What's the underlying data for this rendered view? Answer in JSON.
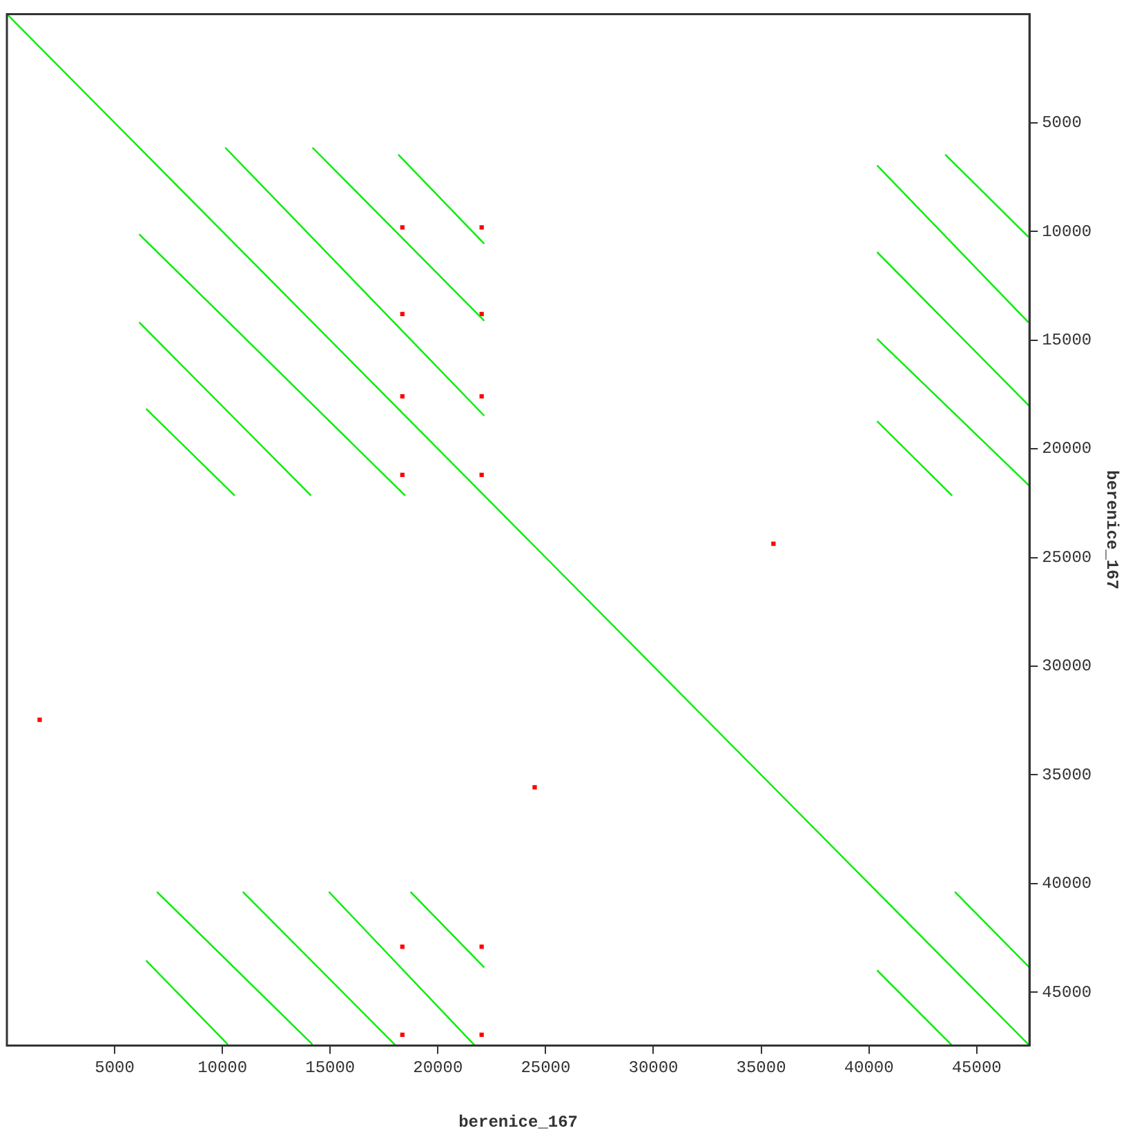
{
  "chart_data": {
    "type": "line",
    "xlabel": "berenice_167",
    "ylabel": "berenice_167",
    "xlim": [
      0,
      47450
    ],
    "ylim": [
      47450,
      0
    ],
    "xticks": [
      5000,
      10000,
      15000,
      20000,
      25000,
      30000,
      35000,
      40000,
      45000
    ],
    "yticks": [
      5000,
      10000,
      15000,
      20000,
      25000,
      30000,
      35000,
      40000,
      45000
    ],
    "grid": false,
    "legend": false,
    "marker": "none",
    "series": [
      {
        "color": "#00ee00",
        "x": [
          0,
          47450
        ],
        "values": [
          0,
          47450
        ]
      },
      {
        "color": "#00ee00",
        "x": [
          10130,
          22150
        ],
        "values": [
          6140,
          18480
        ]
      },
      {
        "color": "#00ee00",
        "x": [
          6140,
          18480
        ],
        "values": [
          10130,
          22150
        ]
      },
      {
        "color": "#00ee00",
        "x": [
          14180,
          22150
        ],
        "values": [
          6140,
          14110
        ]
      },
      {
        "color": "#00ee00",
        "x": [
          6140,
          14110
        ],
        "values": [
          14180,
          22150
        ]
      },
      {
        "color": "#00ee00",
        "x": [
          18160,
          22150
        ],
        "values": [
          6460,
          10570
        ]
      },
      {
        "color": "#00ee00",
        "x": [
          6460,
          10570
        ],
        "values": [
          18160,
          22150
        ]
      },
      {
        "color": "#00ee00",
        "x": [
          43540,
          47400
        ],
        "values": [
          6460,
          10250
        ]
      },
      {
        "color": "#00ee00",
        "x": [
          40380,
          47400
        ],
        "values": [
          6960,
          14180
        ]
      },
      {
        "color": "#00ee00",
        "x": [
          40380,
          47450
        ],
        "values": [
          10950,
          18040
        ]
      },
      {
        "color": "#00ee00",
        "x": [
          40380,
          47450
        ],
        "values": [
          14940,
          21710
        ]
      },
      {
        "color": "#00ee00",
        "x": [
          40380,
          43860
        ],
        "values": [
          18730,
          22150
        ]
      },
      {
        "color": "#00ee00",
        "x": [
          6460,
          10250
        ],
        "values": [
          43540,
          47400
        ]
      },
      {
        "color": "#00ee00",
        "x": [
          6960,
          14180
        ],
        "values": [
          40380,
          47400
        ]
      },
      {
        "color": "#00ee00",
        "x": [
          10950,
          18040
        ],
        "values": [
          40380,
          47450
        ]
      },
      {
        "color": "#00ee00",
        "x": [
          14940,
          21710
        ],
        "values": [
          40380,
          47450
        ]
      },
      {
        "color": "#00ee00",
        "x": [
          18730,
          22150
        ],
        "values": [
          40380,
          43860
        ]
      },
      {
        "color": "#00ee00",
        "x": [
          40380,
          43860
        ],
        "values": [
          43990,
          47450
        ]
      },
      {
        "color": "#00ee00",
        "x": [
          43990,
          47450
        ],
        "values": [
          40380,
          43860
        ]
      },
      {
        "type": "scatter",
        "marker": "square",
        "color": "#ff0000",
        "x": [
          18350,
          22030,
          18350,
          22030,
          18350,
          22030,
          18350,
          22030,
          18350,
          22030,
          18350,
          22030,
          35570,
          1520,
          24490
        ],
        "values": [
          9810,
          9810,
          13800,
          13800,
          17590,
          17590,
          21200,
          21200,
          42910,
          42910,
          46960,
          46960,
          24370,
          32470,
          35570
        ]
      }
    ]
  }
}
